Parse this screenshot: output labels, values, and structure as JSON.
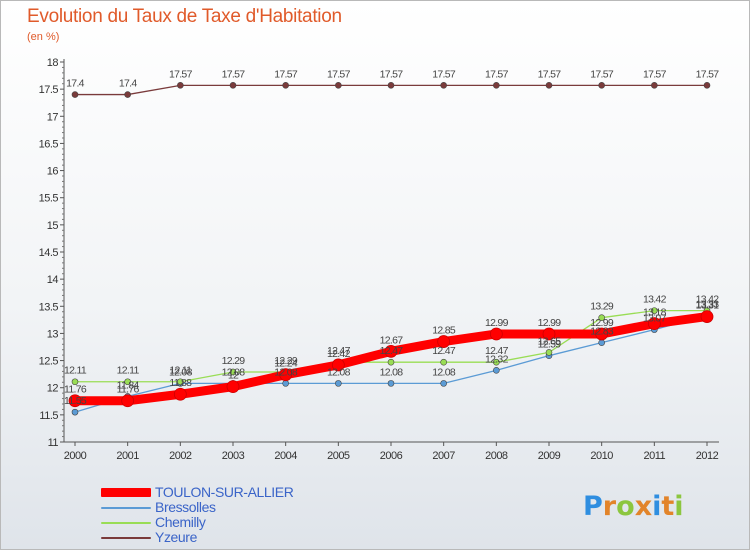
{
  "title": "Evolution du Taux de Taxe d'Habitation",
  "subtitle": "(en %)",
  "logo": {
    "text": "Proxiti",
    "letters": [
      "P",
      "r",
      "o",
      "x",
      "i",
      "t",
      "i"
    ],
    "colors": [
      "#2f8ee0",
      "#e2842a",
      "#8cc63f",
      "#e2842a",
      "#2f8ee0",
      "#e2842a",
      "#8cc63f"
    ]
  },
  "chart_data": {
    "type": "line",
    "title": "Evolution du Taux de Taxe d'Habitation",
    "ylabel": "(en %)",
    "xlabel": "",
    "categories": [
      "2000",
      "2001",
      "2002",
      "2003",
      "2004",
      "2005",
      "2006",
      "2007",
      "2008",
      "2009",
      "2010",
      "2011",
      "2012"
    ],
    "ylim": [
      11,
      18
    ],
    "yticks": [
      "11",
      "11.5",
      "12",
      "12.5",
      "13",
      "13.5",
      "14",
      "14.5",
      "15",
      "15.5",
      "16",
      "16.5",
      "17",
      "17.5",
      "18"
    ],
    "grid": false,
    "series": [
      {
        "name": "TOULON-SUR-ALLIER",
        "color": "#ff0000",
        "emphasis": true,
        "values": [
          11.76,
          11.76,
          11.88,
          12.02,
          12.24,
          12.42,
          12.67,
          12.85,
          12.99,
          12.99,
          12.99,
          13.18,
          13.31
        ],
        "labels": [
          "11.76",
          "11.76",
          "11.88",
          "12",
          "12.24",
          "12.42",
          "12.67",
          "12.85",
          "12.99",
          "12.99",
          "12.99",
          "13.18",
          "13.31"
        ]
      },
      {
        "name": "Bressolles",
        "color": "#5b9bd5",
        "values": [
          11.55,
          11.84,
          12.08,
          12.08,
          12.08,
          12.08,
          12.08,
          12.08,
          12.32,
          12.59,
          12.83,
          13.07,
          13.33
        ],
        "labels": [
          "11.55",
          "11.84",
          "12.08",
          "12.08",
          "12.08",
          "12.08",
          "12.08",
          "12.08",
          "12.32",
          "12.59",
          "12.83",
          "13.07",
          "13.33"
        ]
      },
      {
        "name": "Chemilly",
        "color": "#99dd55",
        "values": [
          12.11,
          12.11,
          12.11,
          12.29,
          12.29,
          12.47,
          12.47,
          12.47,
          12.47,
          12.65,
          13.29,
          13.42,
          13.42
        ],
        "labels": [
          "12.11",
          "12.11",
          "12.11",
          "12.29",
          "12.29",
          "12.47",
          "12.47",
          "12.47",
          "12.47",
          "12.65",
          "13.29",
          "13.42",
          "13.42"
        ]
      },
      {
        "name": "Yzeure",
        "color": "#7a3b3b",
        "values": [
          17.4,
          17.4,
          17.57,
          17.57,
          17.57,
          17.57,
          17.57,
          17.57,
          17.57,
          17.57,
          17.57,
          17.57,
          17.57
        ],
        "labels": [
          "17.4",
          "17.4",
          "17.57",
          "17.57",
          "17.57",
          "17.57",
          "17.57",
          "17.57",
          "17.57",
          "17.57",
          "17.57",
          "17.57",
          "17.57"
        ]
      }
    ]
  }
}
